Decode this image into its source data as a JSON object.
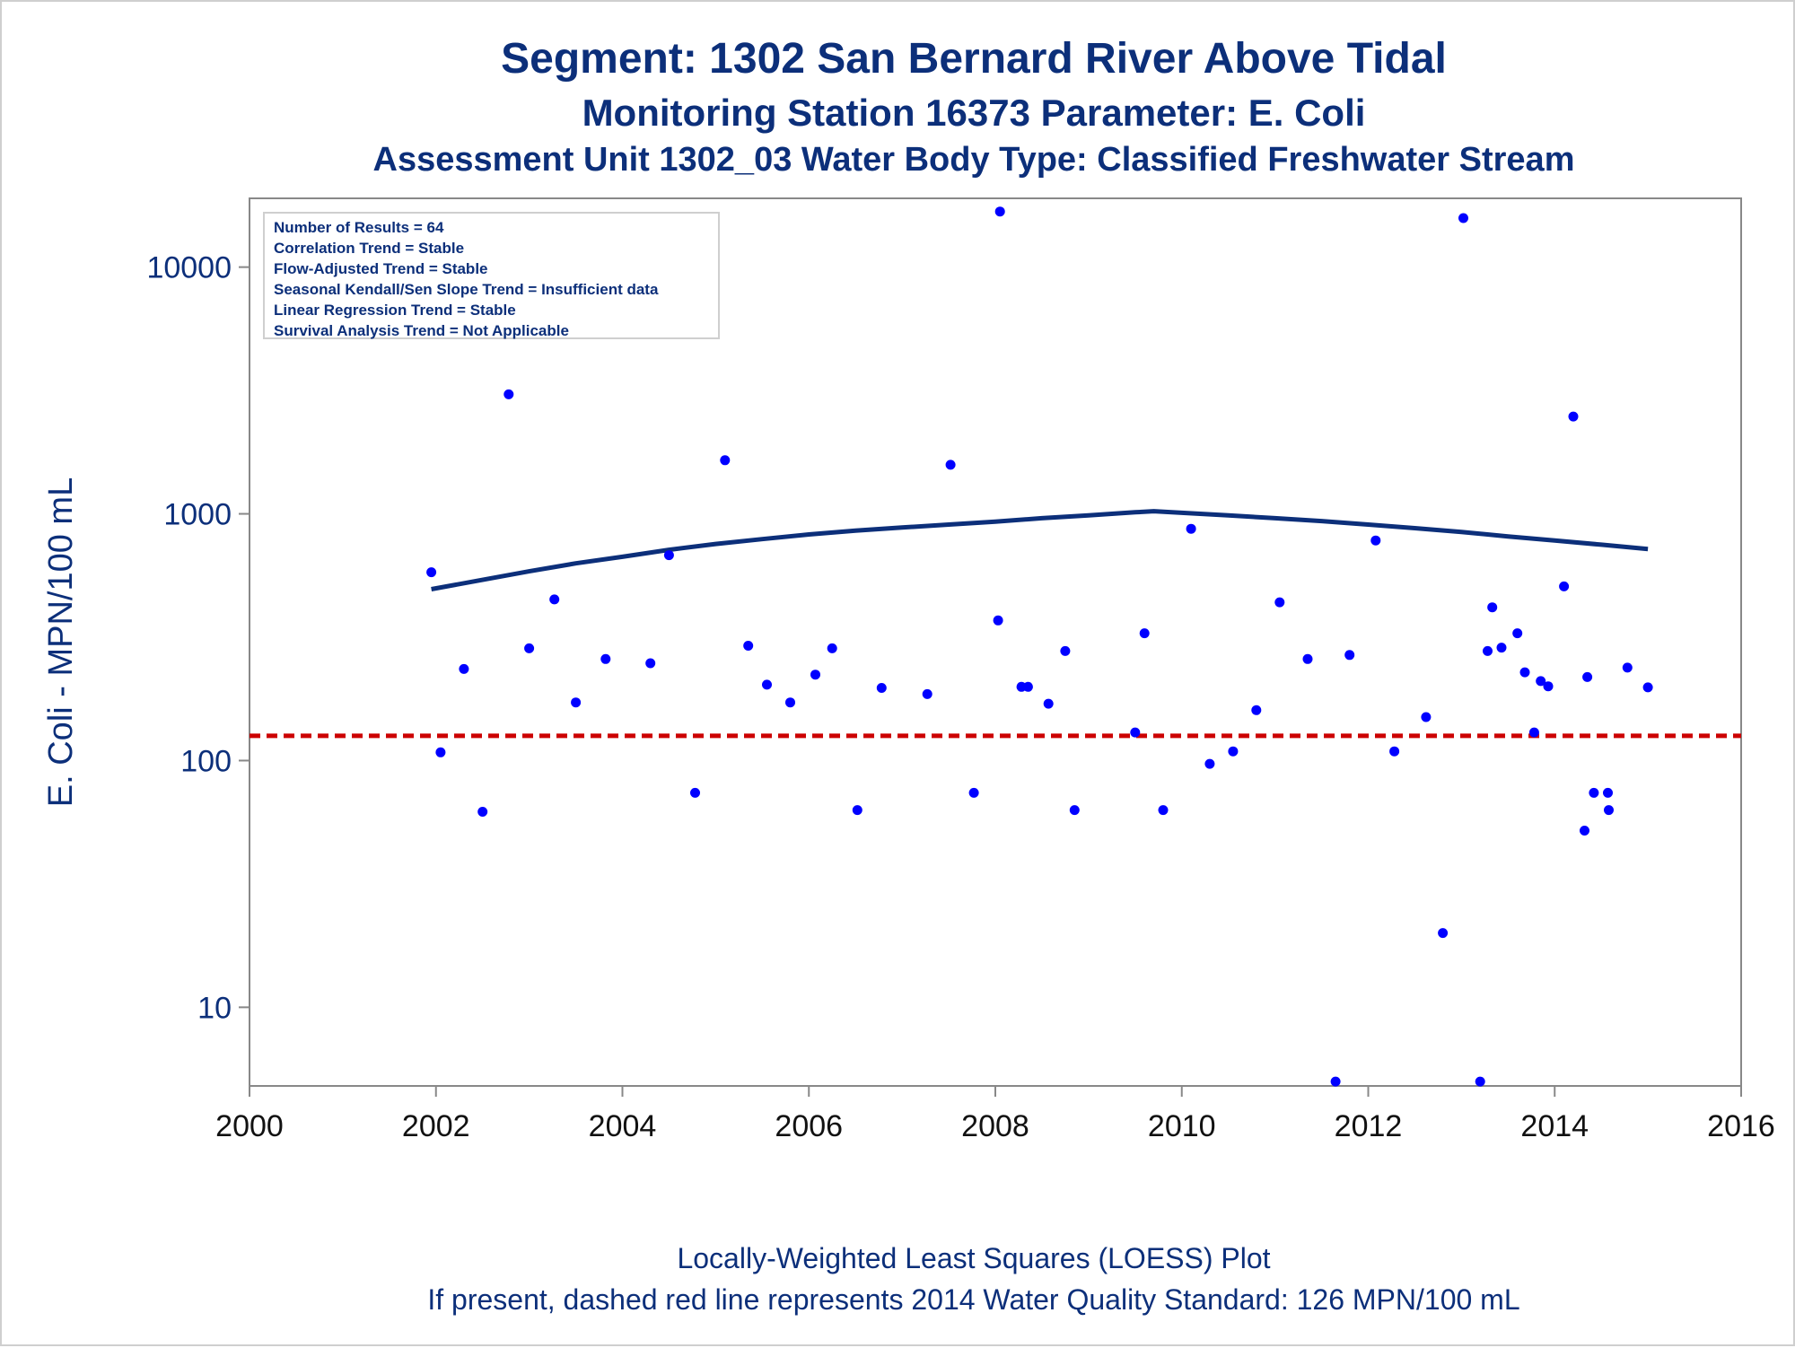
{
  "chart_data": {
    "type": "scatter",
    "title": "Segment: 1302  San Bernard River Above Tidal",
    "subtitle": "Monitoring Station 16373 Parameter: E. Coli",
    "subtitle2": "Assessment Unit 1302_03   Water Body Type: Classified Freshwater Stream",
    "xlabel": "",
    "ylabel": "E. Coli - MPN/100 mL",
    "xlim": [
      2000,
      2016
    ],
    "ylim": [
      4.8,
      19000
    ],
    "yscale": "log",
    "grid": false,
    "xticks": [
      "2000",
      "2002",
      "2004",
      "2006",
      "2008",
      "2010",
      "2012",
      "2014",
      "2016"
    ],
    "yticks": [
      "10",
      "100",
      "1000",
      "10000"
    ],
    "stats_lines": [
      "Number of Results = 64",
      "Correlation Trend = Stable",
      "Flow-Adjusted Trend = Stable",
      "Seasonal Kendall/Sen Slope Trend = Insufficient data",
      "Linear Regression Trend = Stable",
      "Survival Analysis Trend = Not Applicable"
    ],
    "points": [
      [
        2001.95,
        580
      ],
      [
        2002.05,
        108
      ],
      [
        2002.3,
        235
      ],
      [
        2002.5,
        62
      ],
      [
        2002.78,
        3050
      ],
      [
        2003.0,
        285
      ],
      [
        2003.27,
        450
      ],
      [
        2003.5,
        172
      ],
      [
        2003.82,
        258
      ],
      [
        2004.3,
        248
      ],
      [
        2004.5,
        680
      ],
      [
        2004.78,
        74
      ],
      [
        2005.1,
        1650
      ],
      [
        2005.35,
        292
      ],
      [
        2005.55,
        203
      ],
      [
        2005.8,
        172
      ],
      [
        2006.07,
        223
      ],
      [
        2006.25,
        285
      ],
      [
        2006.52,
        63
      ],
      [
        2006.78,
        197
      ],
      [
        2007.27,
        186
      ],
      [
        2007.52,
        1580
      ],
      [
        2007.77,
        74
      ],
      [
        2008.03,
        370
      ],
      [
        2008.05,
        16800
      ],
      [
        2008.28,
        199
      ],
      [
        2008.35,
        199
      ],
      [
        2008.57,
        170
      ],
      [
        2008.75,
        278
      ],
      [
        2008.85,
        63
      ],
      [
        2009.5,
        130
      ],
      [
        2009.6,
        328
      ],
      [
        2009.8,
        63
      ],
      [
        2010.1,
        870
      ],
      [
        2010.3,
        97
      ],
      [
        2010.55,
        109
      ],
      [
        2010.8,
        160
      ],
      [
        2011.05,
        438
      ],
      [
        2011.35,
        258
      ],
      [
        2011.65,
        5
      ],
      [
        2011.8,
        268
      ],
      [
        2012.08,
        780
      ],
      [
        2012.28,
        109
      ],
      [
        2012.62,
        150
      ],
      [
        2012.8,
        20
      ],
      [
        2013.02,
        15800
      ],
      [
        2013.2,
        5
      ],
      [
        2013.28,
        278
      ],
      [
        2013.33,
        418
      ],
      [
        2013.43,
        287
      ],
      [
        2013.6,
        328
      ],
      [
        2013.68,
        228
      ],
      [
        2013.78,
        130
      ],
      [
        2013.85,
        210
      ],
      [
        2013.93,
        200
      ],
      [
        2014.1,
        508
      ],
      [
        2014.2,
        2480
      ],
      [
        2014.32,
        52
      ],
      [
        2014.35,
        218
      ],
      [
        2014.42,
        74
      ],
      [
        2014.57,
        74
      ],
      [
        2014.58,
        63
      ],
      [
        2014.78,
        238
      ],
      [
        2015.0,
        198
      ]
    ],
    "loess": [
      [
        2001.95,
        495
      ],
      [
        2002.5,
        540
      ],
      [
        2003.0,
        585
      ],
      [
        2003.5,
        630
      ],
      [
        2004.0,
        670
      ],
      [
        2004.5,
        715
      ],
      [
        2005.0,
        755
      ],
      [
        2005.5,
        790
      ],
      [
        2006.0,
        825
      ],
      [
        2006.5,
        855
      ],
      [
        2007.0,
        880
      ],
      [
        2007.5,
        905
      ],
      [
        2008.0,
        930
      ],
      [
        2008.5,
        960
      ],
      [
        2009.0,
        985
      ],
      [
        2009.5,
        1015
      ],
      [
        2009.7,
        1025
      ],
      [
        2010.0,
        1010
      ],
      [
        2010.5,
        985
      ],
      [
        2011.0,
        960
      ],
      [
        2011.5,
        935
      ],
      [
        2012.0,
        905
      ],
      [
        2012.5,
        875
      ],
      [
        2013.0,
        845
      ],
      [
        2013.5,
        810
      ],
      [
        2014.0,
        780
      ],
      [
        2014.5,
        750
      ],
      [
        2015.0,
        720
      ]
    ],
    "reference_line": {
      "value": 126,
      "color": "#cc0000",
      "style": "dashed"
    },
    "colors": {
      "points": "#0000ff",
      "loess": "#0c2f7a",
      "axis": "#888888",
      "text": "#0c2f7a"
    }
  },
  "footnote1": "Locally-Weighted Least Squares (LOESS) Plot",
  "footnote2": "If present, dashed red line represents 2014 Water Quality Standard: 126 MPN/100 mL"
}
